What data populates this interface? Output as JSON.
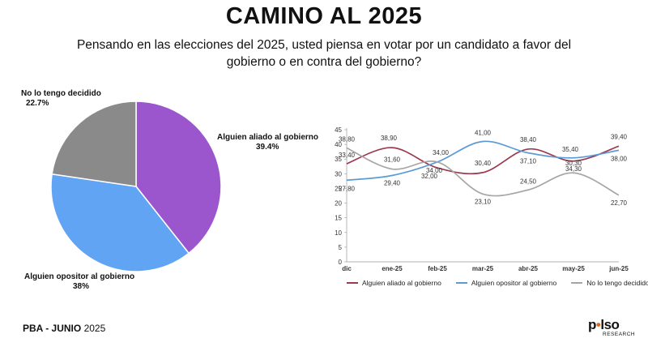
{
  "title": "CAMINO AL 2025",
  "subtitle": "Pensando en las elecciones del 2025, usted piensa en votar por un candidato a favor del gobierno o en contra del gobierno?",
  "chart_data": [
    {
      "type": "pie",
      "slices": [
        {
          "name": "Alguien aliado al gobierno",
          "label": "39.4%",
          "value": 39.4,
          "color": "#9b56cd"
        },
        {
          "name": "Alguien opositor al gobierno",
          "label": "38%",
          "value": 38.0,
          "color": "#62a4f4"
        },
        {
          "name": "No lo tengo decidido",
          "label": "22.7%",
          "value": 22.7,
          "color": "#8a8a8a"
        }
      ]
    },
    {
      "type": "line",
      "categories": [
        "dic",
        "ene-25",
        "feb-25",
        "mar-25",
        "abr-25",
        "may-25",
        "jun-25"
      ],
      "ylim": [
        0,
        45
      ],
      "yticks": [
        0,
        5,
        10,
        15,
        20,
        25,
        30,
        35,
        40,
        45
      ],
      "legend_position": "bottom",
      "series": [
        {
          "name": "Alguien aliado al gobierno",
          "color": "#9c3a52",
          "values": [
            33.4,
            38.9,
            32.0,
            30.4,
            38.4,
            34.3,
            39.4
          ],
          "labels": [
            "33,40",
            "38,90",
            "32,00",
            "30,40",
            "38,40",
            "34,30",
            "39,40"
          ]
        },
        {
          "name": "Alguien opositor al gobierno",
          "color": "#5b9bd5",
          "values": [
            27.8,
            29.4,
            34.0,
            41.0,
            37.1,
            35.4,
            38.0
          ],
          "labels": [
            "27,80",
            "29,40",
            "34,00",
            "41,00",
            "37,10",
            "35,40",
            "38,00"
          ]
        },
        {
          "name": "No lo tengo decidido",
          "color": "#a6a6a6",
          "values": [
            38.8,
            31.6,
            34.0,
            23.1,
            24.5,
            30.3,
            22.7
          ],
          "labels": [
            "38,80",
            "31,60",
            "34,00",
            "23,10",
            "24,50",
            "30,30",
            "22,70"
          ]
        }
      ]
    }
  ],
  "footer": {
    "left_bold": "PBA -  JUNIO",
    "left_year": "2025"
  },
  "logo": {
    "main_a": "p",
    "main_accent": "•",
    "main_b": "lso",
    "sub": "RESEARCH"
  }
}
